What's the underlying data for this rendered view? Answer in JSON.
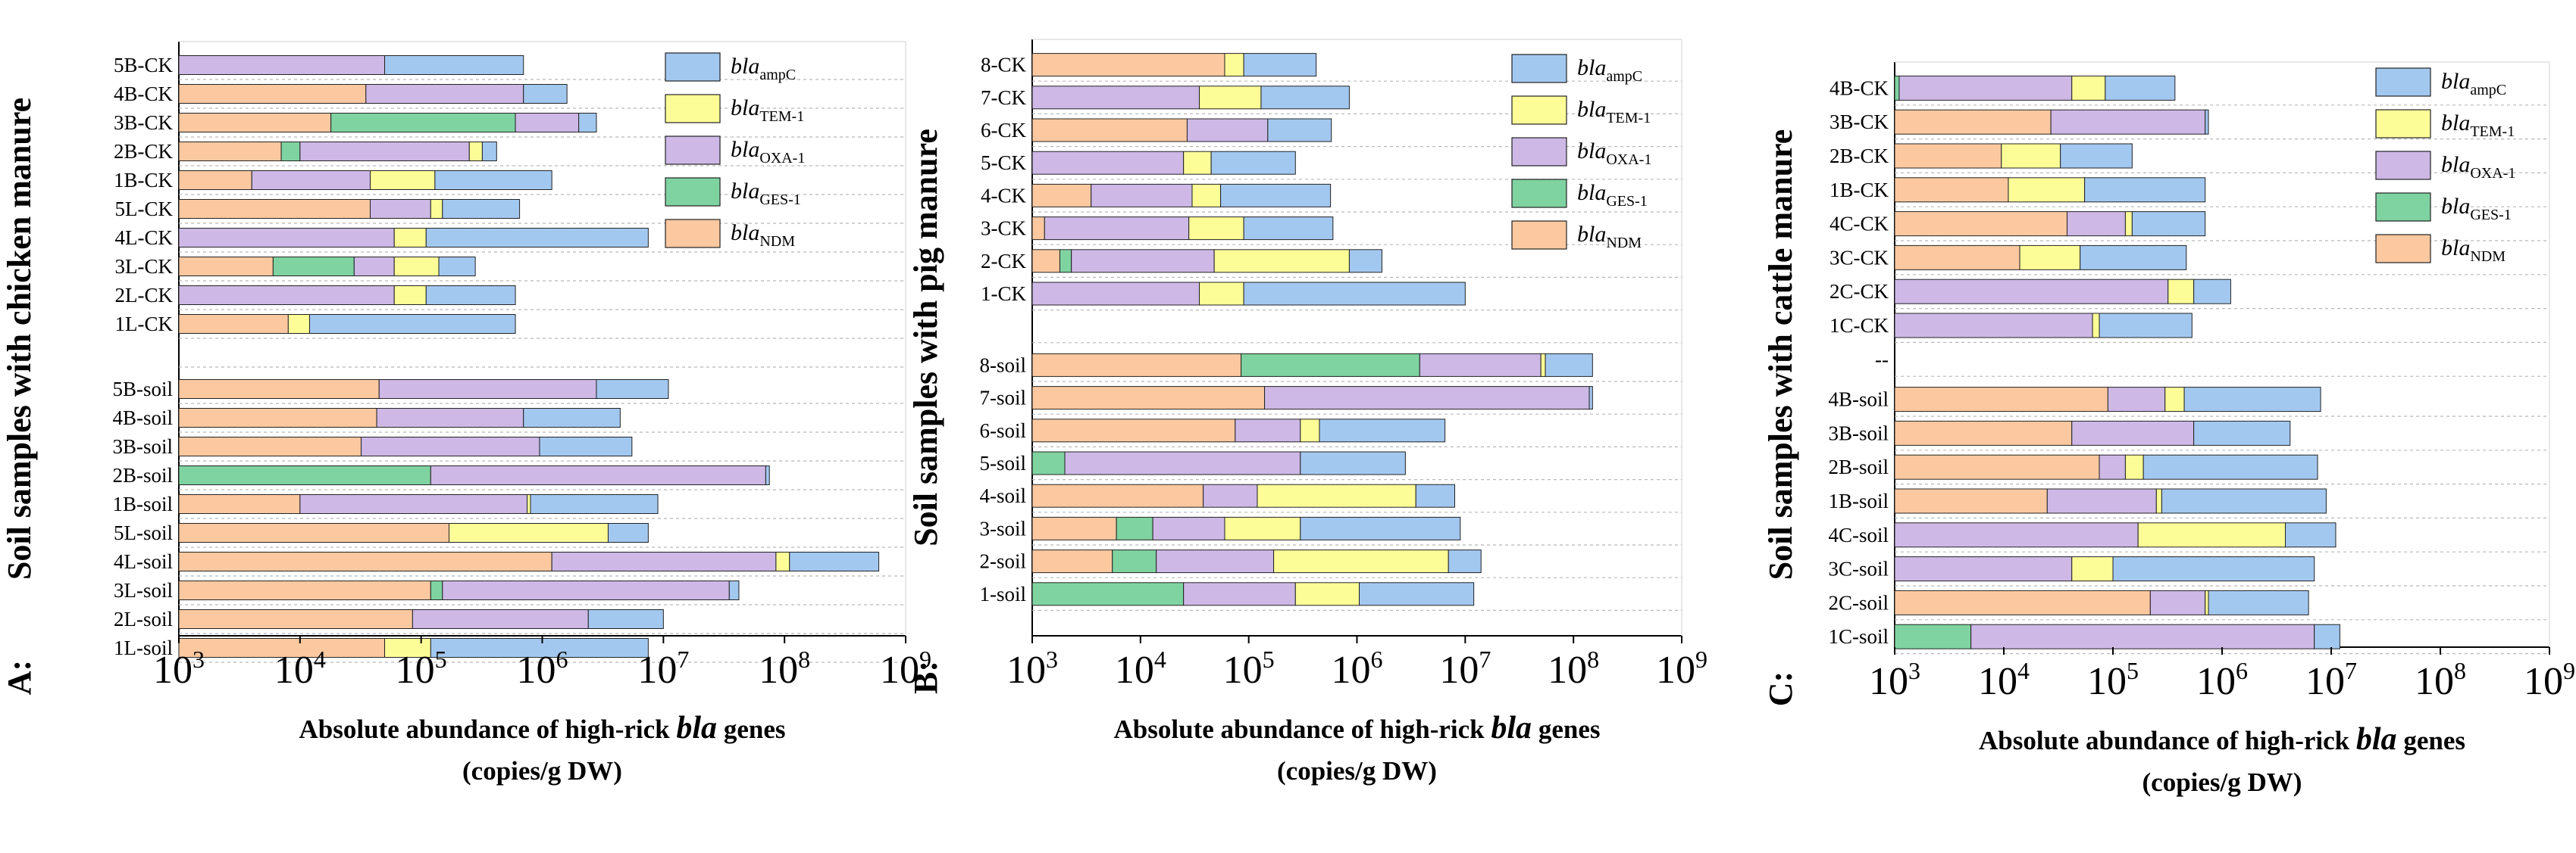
{
  "chart_data": [
    {
      "type": "bar",
      "panel_label": "A:",
      "ylabel": "Soil samples with chicken manure",
      "xlabel": "Absolute abundance of high-rick bla genes",
      "xlabel_parts": [
        "Absolute abundance of high-rick ",
        "bla",
        " genes"
      ],
      "xunit": "(copies/g DW)",
      "xscale": "log",
      "xlim": [
        1000,
        1000000000
      ],
      "xticks": [
        {
          "base": "10",
          "exp": "3"
        },
        {
          "base": "10",
          "exp": "4"
        },
        {
          "base": "10",
          "exp": "5"
        },
        {
          "base": "10",
          "exp": "6"
        },
        {
          "base": "10",
          "exp": "7"
        },
        {
          "base": "10",
          "exp": "8"
        },
        {
          "base": "10",
          "exp": "9"
        }
      ],
      "legend_position": "top-right",
      "series": [
        {
          "name": "blaNDM",
          "prefix": "bla",
          "sub": "NDM",
          "color": "#fbc8a0"
        },
        {
          "name": "blaGES-1",
          "prefix": "bla",
          "sub": "GES-1",
          "color": "#7fd3a0"
        },
        {
          "name": "blaOXA-1",
          "prefix": "bla",
          "sub": "OXA-1",
          "color": "#cdb8e6"
        },
        {
          "name": "blaTEM-1",
          "prefix": "bla",
          "sub": "TEM-1",
          "color": "#fdfd98"
        },
        {
          "name": "blaampC",
          "prefix": "bla",
          "sub": "ampC",
          "color": "#a3c8f0"
        }
      ],
      "legend_order": [
        4,
        3,
        2,
        1,
        0
      ],
      "categories": [
        "5B-CK",
        "4B-CK",
        "3B-CK",
        "2B-CK",
        "1B-CK",
        "5L-CK",
        "4L-CK",
        "3L-CK",
        "2L-CK",
        "1L-CK",
        "",
        "5B-soil",
        "4B-soil",
        "3B-soil",
        "2B-soil",
        "1B-soil",
        "5L-soil",
        "4L-soil",
        "3L-soil",
        "2L-soil",
        "1L-soil"
      ],
      "stacks": [
        [
          [
            2,
            50000
          ],
          [
            3,
            50000
          ],
          [
            4,
            700000
          ]
        ],
        [
          [
            0,
            35000
          ],
          [
            2,
            700000
          ],
          [
            4,
            1600000
          ]
        ],
        [
          [
            0,
            18000
          ],
          [
            1,
            600000
          ],
          [
            2,
            2000000
          ],
          [
            4,
            2800000
          ]
        ],
        [
          [
            0,
            7000
          ],
          [
            1,
            10000
          ],
          [
            2,
            250000
          ],
          [
            3,
            320000
          ],
          [
            4,
            420000
          ]
        ],
        [
          [
            0,
            4000
          ],
          [
            2,
            38000
          ],
          [
            3,
            130000
          ],
          [
            4,
            1200000
          ]
        ],
        [
          [
            0,
            38000
          ],
          [
            2,
            120000
          ],
          [
            3,
            150000
          ],
          [
            4,
            650000
          ]
        ],
        [
          [
            2,
            60000
          ],
          [
            3,
            110000
          ],
          [
            4,
            7500000
          ]
        ],
        [
          [
            0,
            6000
          ],
          [
            1,
            28000
          ],
          [
            2,
            60000
          ],
          [
            3,
            140000
          ],
          [
            4,
            280000
          ]
        ],
        [
          [
            2,
            60000
          ],
          [
            3,
            110000
          ],
          [
            4,
            600000
          ]
        ],
        [
          [
            0,
            8000
          ],
          [
            3,
            12000
          ],
          [
            4,
            600000
          ]
        ],
        [],
        [
          [
            0,
            45000
          ],
          [
            2,
            2800000
          ],
          [
            4,
            11000000
          ]
        ],
        [
          [
            0,
            43000
          ],
          [
            2,
            700000
          ],
          [
            4,
            4400000
          ]
        ],
        [
          [
            0,
            32000
          ],
          [
            2,
            950000
          ],
          [
            4,
            5500000
          ]
        ],
        [
          [
            1,
            120000
          ],
          [
            2,
            70000000
          ],
          [
            4,
            75000000
          ]
        ],
        [
          [
            0,
            10000
          ],
          [
            2,
            750000
          ],
          [
            3,
            800000
          ],
          [
            4,
            9000000
          ]
        ],
        [
          [
            0,
            170000
          ],
          [
            3,
            3500000
          ],
          [
            4,
            7500000
          ]
        ],
        [
          [
            0,
            1200000
          ],
          [
            2,
            85000000
          ],
          [
            3,
            110000000
          ],
          [
            4,
            600000000
          ]
        ],
        [
          [
            0,
            120000
          ],
          [
            1,
            150000
          ],
          [
            2,
            35000000
          ],
          [
            4,
            42000000
          ]
        ],
        [
          [
            0,
            85000
          ],
          [
            2,
            2400000
          ],
          [
            4,
            10000000
          ]
        ],
        [
          [
            0,
            50000
          ],
          [
            3,
            120000
          ],
          [
            4,
            7500000
          ]
        ]
      ]
    },
    {
      "type": "bar",
      "panel_label": "B:",
      "ylabel": "Soil samples with pig manure",
      "xlabel": "Absolute abundance of high-rick bla genes",
      "xlabel_parts": [
        "Absolute abundance of high-rick ",
        "bla",
        " genes"
      ],
      "xunit": "(copies/g DW)",
      "xscale": "log",
      "xlim": [
        1000,
        1000000000
      ],
      "xticks": [
        {
          "base": "10",
          "exp": "3"
        },
        {
          "base": "10",
          "exp": "4"
        },
        {
          "base": "10",
          "exp": "5"
        },
        {
          "base": "10",
          "exp": "6"
        },
        {
          "base": "10",
          "exp": "7"
        },
        {
          "base": "10",
          "exp": "8"
        },
        {
          "base": "10",
          "exp": "9"
        }
      ],
      "legend_position": "top-right",
      "series": [
        {
          "name": "blaNDM",
          "prefix": "bla",
          "sub": "NDM",
          "color": "#fbc8a0"
        },
        {
          "name": "blaGES-1",
          "prefix": "bla",
          "sub": "GES-1",
          "color": "#7fd3a0"
        },
        {
          "name": "blaOXA-1",
          "prefix": "bla",
          "sub": "OXA-1",
          "color": "#cdb8e6"
        },
        {
          "name": "blaTEM-1",
          "prefix": "bla",
          "sub": "TEM-1",
          "color": "#fdfd98"
        },
        {
          "name": "blaampC",
          "prefix": "bla",
          "sub": "ampC",
          "color": "#a3c8f0"
        }
      ],
      "legend_order": [
        4,
        3,
        2,
        1,
        0
      ],
      "categories": [
        "8-CK",
        "7-CK",
        "6-CK",
        "5-CK",
        "4-CK",
        "3-CK",
        "2-CK",
        "1-CK",
        "",
        "8-soil",
        "7-soil",
        "6-soil",
        "5-soil",
        "4-soil",
        "3-soil",
        "2-soil",
        "1-soil"
      ],
      "stacks": [
        [
          [
            0,
            60000
          ],
          [
            3,
            90000
          ],
          [
            4,
            420000
          ]
        ],
        [
          [
            2,
            35000
          ],
          [
            3,
            130000
          ],
          [
            4,
            850000
          ]
        ],
        [
          [
            0,
            27000
          ],
          [
            2,
            150000
          ],
          [
            4,
            580000
          ]
        ],
        [
          [
            2,
            25000
          ],
          [
            3,
            45000
          ],
          [
            4,
            270000
          ]
        ],
        [
          [
            0,
            3500
          ],
          [
            2,
            30000
          ],
          [
            3,
            55000
          ],
          [
            4,
            570000
          ]
        ],
        [
          [
            0,
            1300
          ],
          [
            2,
            28000
          ],
          [
            3,
            90000
          ],
          [
            4,
            600000
          ]
        ],
        [
          [
            0,
            1800
          ],
          [
            1,
            2300
          ],
          [
            2,
            48000
          ],
          [
            3,
            850000
          ],
          [
            4,
            1700000
          ]
        ],
        [
          [
            2,
            35000
          ],
          [
            3,
            90000
          ],
          [
            4,
            10000000
          ]
        ],
        [],
        [
          [
            0,
            85000
          ],
          [
            1,
            3800000
          ],
          [
            2,
            50000000
          ],
          [
            3,
            55000000
          ],
          [
            4,
            150000000
          ]
        ],
        [
          [
            0,
            140000
          ],
          [
            2,
            140000000
          ],
          [
            4,
            150000000
          ]
        ],
        [
          [
            0,
            75000
          ],
          [
            2,
            300000
          ],
          [
            3,
            450000
          ],
          [
            4,
            6500000
          ]
        ],
        [
          [
            1,
            2000
          ],
          [
            2,
            300000
          ],
          [
            4,
            2800000
          ]
        ],
        [
          [
            0,
            38000
          ],
          [
            2,
            120000
          ],
          [
            3,
            3500000
          ],
          [
            4,
            8000000
          ]
        ],
        [
          [
            0,
            6000
          ],
          [
            1,
            13000
          ],
          [
            2,
            60000
          ],
          [
            3,
            300000
          ],
          [
            4,
            9000000
          ]
        ],
        [
          [
            0,
            5500
          ],
          [
            1,
            14000
          ],
          [
            2,
            170000
          ],
          [
            3,
            7000000
          ],
          [
            4,
            14000000
          ]
        ],
        [
          [
            1,
            25000
          ],
          [
            2,
            270000
          ],
          [
            3,
            1050000
          ],
          [
            4,
            12000000
          ]
        ]
      ]
    },
    {
      "type": "bar",
      "panel_label": "C:",
      "ylabel": "Soil samples with cattle manure",
      "xlabel": "Absolute abundance of high-rick bla genes",
      "xlabel_parts": [
        "Absolute abundance of high-rick ",
        "bla",
        " genes"
      ],
      "xunit": "(copies/g DW)",
      "xscale": "log",
      "xlim": [
        1000,
        1000000000
      ],
      "xticks": [
        {
          "base": "10",
          "exp": "3"
        },
        {
          "base": "10",
          "exp": "4"
        },
        {
          "base": "10",
          "exp": "5"
        },
        {
          "base": "10",
          "exp": "6"
        },
        {
          "base": "10",
          "exp": "7"
        },
        {
          "base": "10",
          "exp": "8"
        },
        {
          "base": "10",
          "exp": "9"
        }
      ],
      "legend_position": "top-right",
      "series": [
        {
          "name": "blaNDM",
          "prefix": "bla",
          "sub": "NDM",
          "color": "#fbc8a0"
        },
        {
          "name": "blaGES-1",
          "prefix": "bla",
          "sub": "GES-1",
          "color": "#7fd3a0"
        },
        {
          "name": "blaOXA-1",
          "prefix": "bla",
          "sub": "OXA-1",
          "color": "#cdb8e6"
        },
        {
          "name": "blaTEM-1",
          "prefix": "bla",
          "sub": "TEM-1",
          "color": "#fdfd98"
        },
        {
          "name": "blaampC",
          "prefix": "bla",
          "sub": "ampC",
          "color": "#a3c8f0"
        }
      ],
      "legend_order": [
        4,
        3,
        2,
        1,
        0
      ],
      "categories": [
        "4B-CK",
        "3B-CK",
        "2B-CK",
        "1B-CK",
        "4C-CK",
        "3C-CK",
        "2C-CK",
        "1C-CK",
        "--",
        "4B-soil",
        "3B-soil",
        "2B-soil",
        "1B-soil",
        "4C-soil",
        "3C-soil",
        "2C-soil",
        "1C-soil"
      ],
      "stacks": [
        [
          [
            1,
            1100
          ],
          [
            2,
            42000
          ],
          [
            3,
            85000
          ],
          [
            4,
            370000
          ]
        ],
        [
          [
            0,
            27000
          ],
          [
            2,
            700000
          ],
          [
            4,
            750000
          ]
        ],
        [
          [
            0,
            9500
          ],
          [
            3,
            33000
          ],
          [
            4,
            150000
          ]
        ],
        [
          [
            0,
            11000
          ],
          [
            3,
            55000
          ],
          [
            4,
            700000
          ]
        ],
        [
          [
            0,
            38000
          ],
          [
            2,
            130000
          ],
          [
            3,
            150000
          ],
          [
            4,
            700000
          ]
        ],
        [
          [
            0,
            14000
          ],
          [
            3,
            50000
          ],
          [
            4,
            470000
          ]
        ],
        [
          [
            2,
            320000
          ],
          [
            3,
            550000
          ],
          [
            4,
            1200000
          ]
        ],
        [
          [
            2,
            65000
          ],
          [
            3,
            75000
          ],
          [
            4,
            530000
          ]
        ],
        [],
        [
          [
            0,
            90000
          ],
          [
            2,
            300000
          ],
          [
            3,
            450000
          ],
          [
            4,
            8000000
          ]
        ],
        [
          [
            0,
            42000
          ],
          [
            2,
            550000
          ],
          [
            4,
            4200000
          ]
        ],
        [
          [
            0,
            75000
          ],
          [
            2,
            130000
          ],
          [
            3,
            190000
          ],
          [
            4,
            7500000
          ]
        ],
        [
          [
            0,
            25000
          ],
          [
            2,
            250000
          ],
          [
            3,
            280000
          ],
          [
            4,
            9000000
          ]
        ],
        [
          [
            2,
            170000
          ],
          [
            3,
            3800000
          ],
          [
            4,
            11000000
          ]
        ],
        [
          [
            2,
            42000
          ],
          [
            3,
            100000
          ],
          [
            4,
            7000000
          ]
        ],
        [
          [
            0,
            220000
          ],
          [
            2,
            700000
          ],
          [
            3,
            750000
          ],
          [
            4,
            6200000
          ]
        ],
        [
          [
            1,
            5000
          ],
          [
            2,
            7000000
          ],
          [
            4,
            12000000
          ]
        ]
      ]
    }
  ]
}
